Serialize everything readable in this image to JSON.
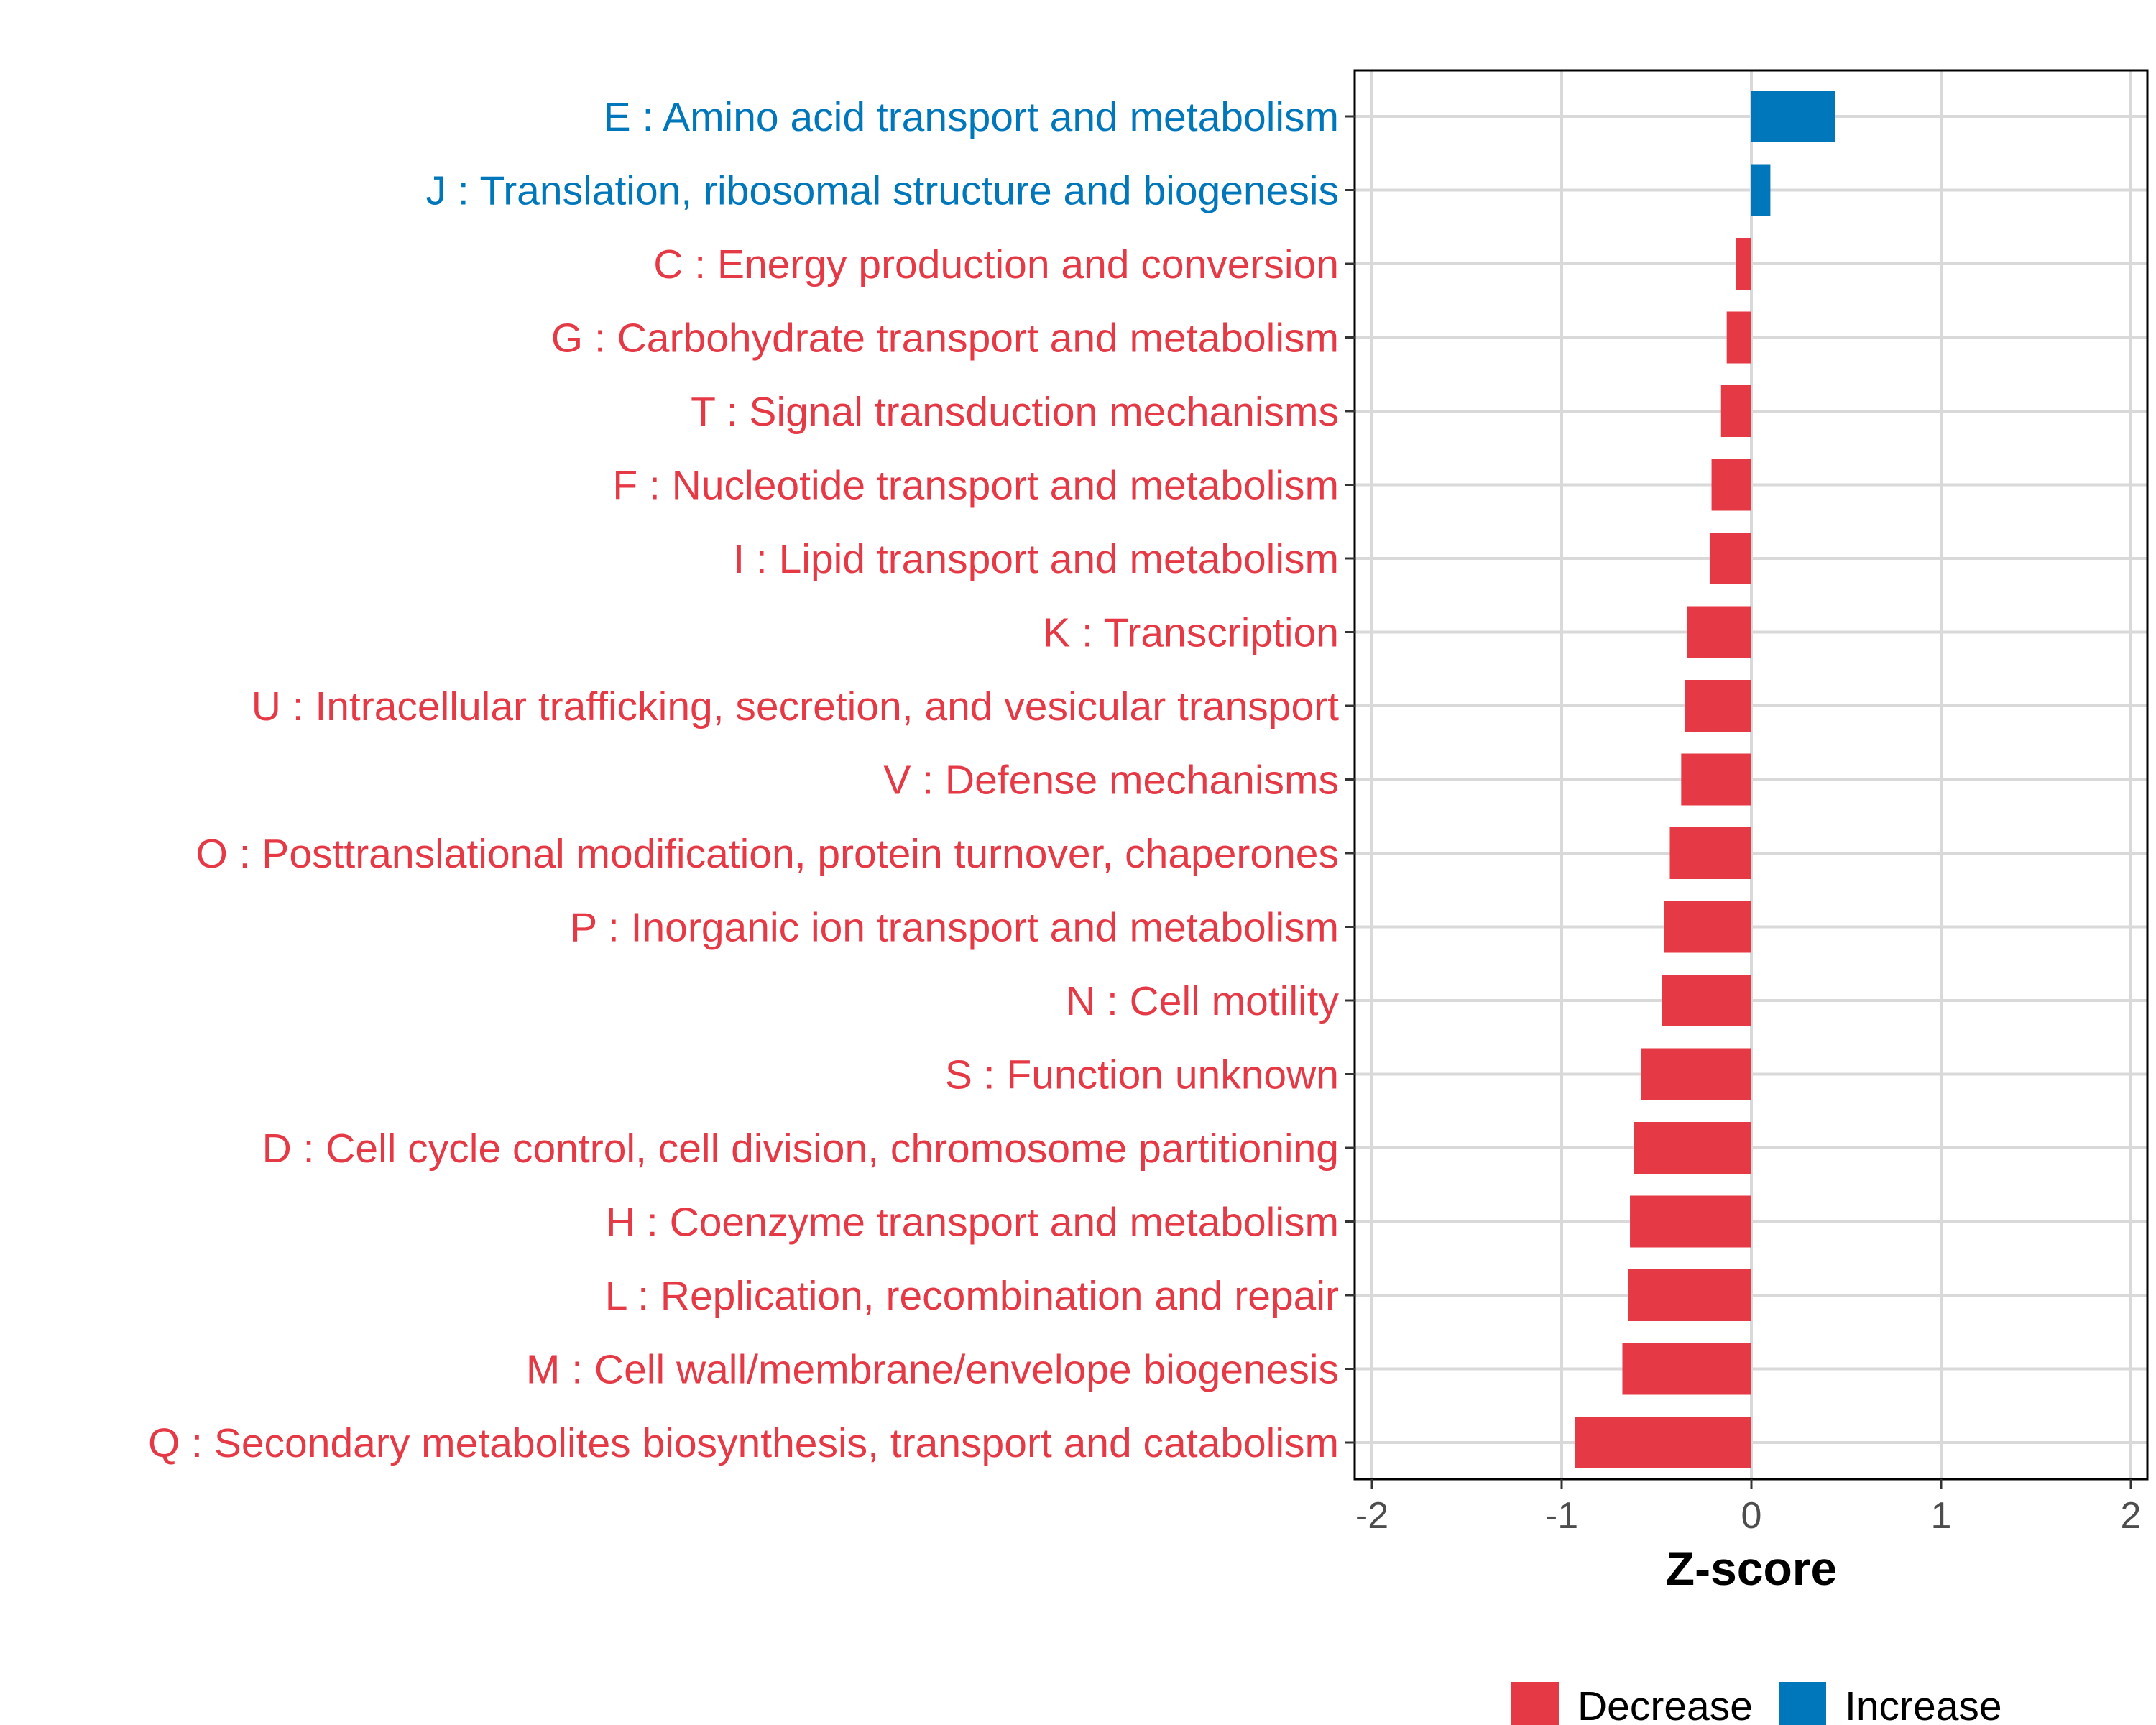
{
  "chart_data": {
    "type": "bar",
    "orientation": "horizontal",
    "title": "",
    "xlabel": "Z-score",
    "ylabel": "",
    "xlim": [
      -2.1,
      2.1
    ],
    "xticks": [
      -2,
      -1,
      0,
      1,
      2
    ],
    "xtick_labels": [
      "-2",
      "-1",
      "0",
      "1",
      "2"
    ],
    "grid": true,
    "legend_position": "bottom",
    "legend": [
      {
        "name": "Decrease",
        "color": "#e63946"
      },
      {
        "name": "Increase",
        "color": "#0077bb"
      }
    ],
    "categories": [
      "E : Amino acid transport and metabolism",
      "J : Translation, ribosomal structure and biogenesis",
      "C : Energy production and conversion",
      "G : Carbohydrate transport and metabolism",
      "T : Signal transduction mechanisms",
      "F : Nucleotide transport and metabolism",
      "I : Lipid transport and metabolism",
      "K : Transcription",
      "U : Intracellular trafficking, secretion, and vesicular transport",
      "V : Defense mechanisms",
      "O : Posttranslational modification, protein turnover, chaperones",
      "P : Inorganic ion transport and metabolism",
      "N : Cell motility",
      "S : Function unknown",
      "D : Cell cycle control, cell division, chromosome partitioning",
      "H : Coenzyme transport and metabolism",
      "L : Replication, recombination and repair",
      "M : Cell wall/membrane/envelope biogenesis",
      "Q : Secondary metabolites biosynthesis, transport and catabolism"
    ],
    "values": [
      0.44,
      0.1,
      -0.08,
      -0.13,
      -0.16,
      -0.21,
      -0.22,
      -0.34,
      -0.35,
      -0.37,
      -0.43,
      -0.46,
      -0.47,
      -0.58,
      -0.62,
      -0.64,
      -0.65,
      -0.68,
      -0.93
    ],
    "direction": [
      "Increase",
      "Increase",
      "Decrease",
      "Decrease",
      "Decrease",
      "Decrease",
      "Decrease",
      "Decrease",
      "Decrease",
      "Decrease",
      "Decrease",
      "Decrease",
      "Decrease",
      "Decrease",
      "Decrease",
      "Decrease",
      "Decrease",
      "Decrease",
      "Decrease"
    ]
  },
  "colors": {
    "decrease": "#e63946",
    "increase": "#0077bb",
    "grid": "#d9d9d9",
    "axis": "#000000"
  }
}
